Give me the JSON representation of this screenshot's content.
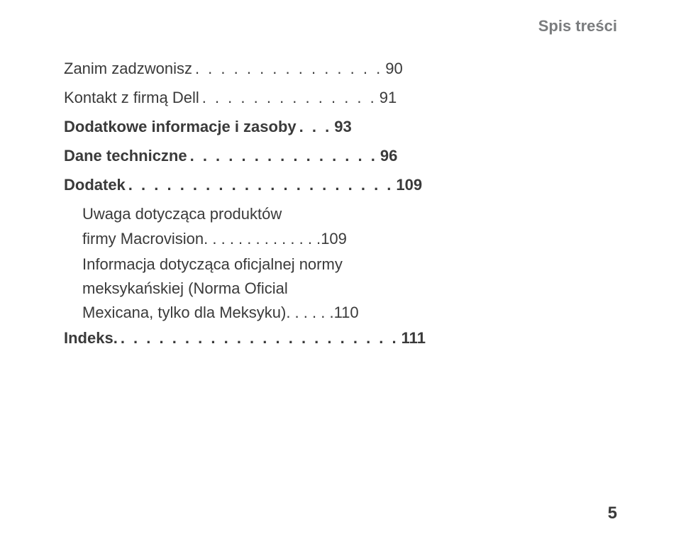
{
  "header": {
    "label": "Spis treści"
  },
  "toc": [
    {
      "type": "line",
      "title": "Zanim zadzwonisz",
      "dots": ". . . . . . . . . . . . . . .",
      "page": "90",
      "bold": false,
      "indent": false
    },
    {
      "type": "line",
      "title": "Kontakt z firmą Dell",
      "dots": ". . . . . . . . . . . . . .",
      "page": "91",
      "bold": false,
      "indent": false
    },
    {
      "type": "line",
      "title": "Dodatkowe informacje i zasoby",
      "dots": ". . .",
      "page": "93",
      "bold": true,
      "indent": false
    },
    {
      "type": "line",
      "title": "Dane techniczne",
      "dots": ". . . . . . . . . . . . . . .",
      "page": "96",
      "bold": true,
      "indent": false
    },
    {
      "type": "line",
      "title": "Dodatek",
      "dots": ". . . . . . . . . . . . . . . . . . . . .",
      "page": "109",
      "bold": true,
      "indent": false
    },
    {
      "type": "wrap",
      "line1": "Uwaga dotycząca produktów",
      "line2_title": "firmy Macrovision",
      "dots": ". . . . . . . . . . . . . .",
      "page": "109",
      "bold": false,
      "indent": true
    },
    {
      "type": "wrap3",
      "line1": "Informacja dotycząca oficjalnej normy",
      "line2": "meksykańskiej (Norma Oficial",
      "line3_title": "Mexicana, tylko dla Meksyku)",
      "dots": ". . . . . .",
      "page": "110",
      "bold": false,
      "indent": true
    },
    {
      "type": "line",
      "title": "Indeks.",
      "dots": ". . . . . . . . . . . . . . . . . . . . . .",
      "page": "111",
      "bold": true,
      "indent": false
    }
  ],
  "footer": {
    "page_number": "5"
  }
}
